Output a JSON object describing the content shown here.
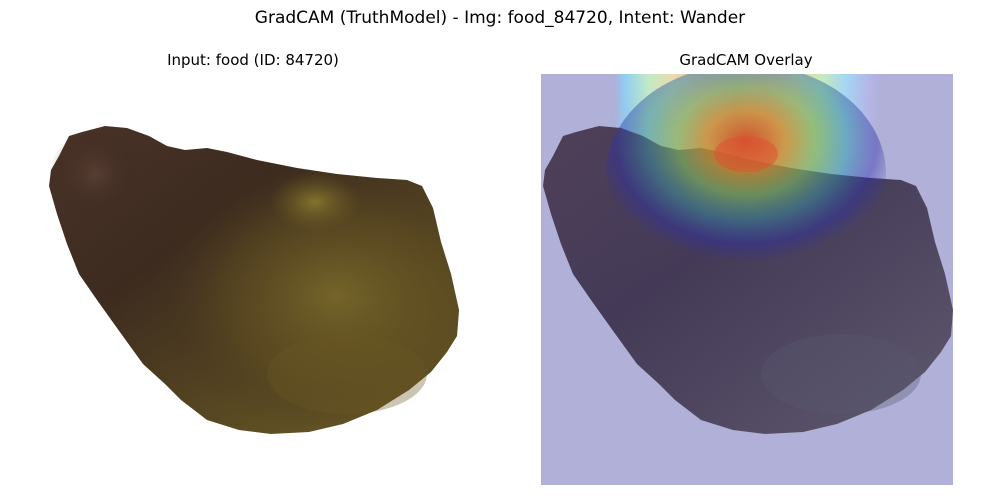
{
  "figure": {
    "title": "GradCAM (TruthModel) - Img: food_84720, Intent: Wander"
  },
  "panels": {
    "input": {
      "title": "Input: food (ID: 84720)"
    },
    "overlay": {
      "title": "GradCAM Overlay"
    }
  },
  "colors": {
    "background": "#ffffff",
    "overlay_base": "#b0b0d8",
    "food_dark": "#3e2a20",
    "food_olive": "#6b5a22",
    "heatmap_hot": "#ff3a1a",
    "heatmap_cool": "#2e2ea8"
  }
}
